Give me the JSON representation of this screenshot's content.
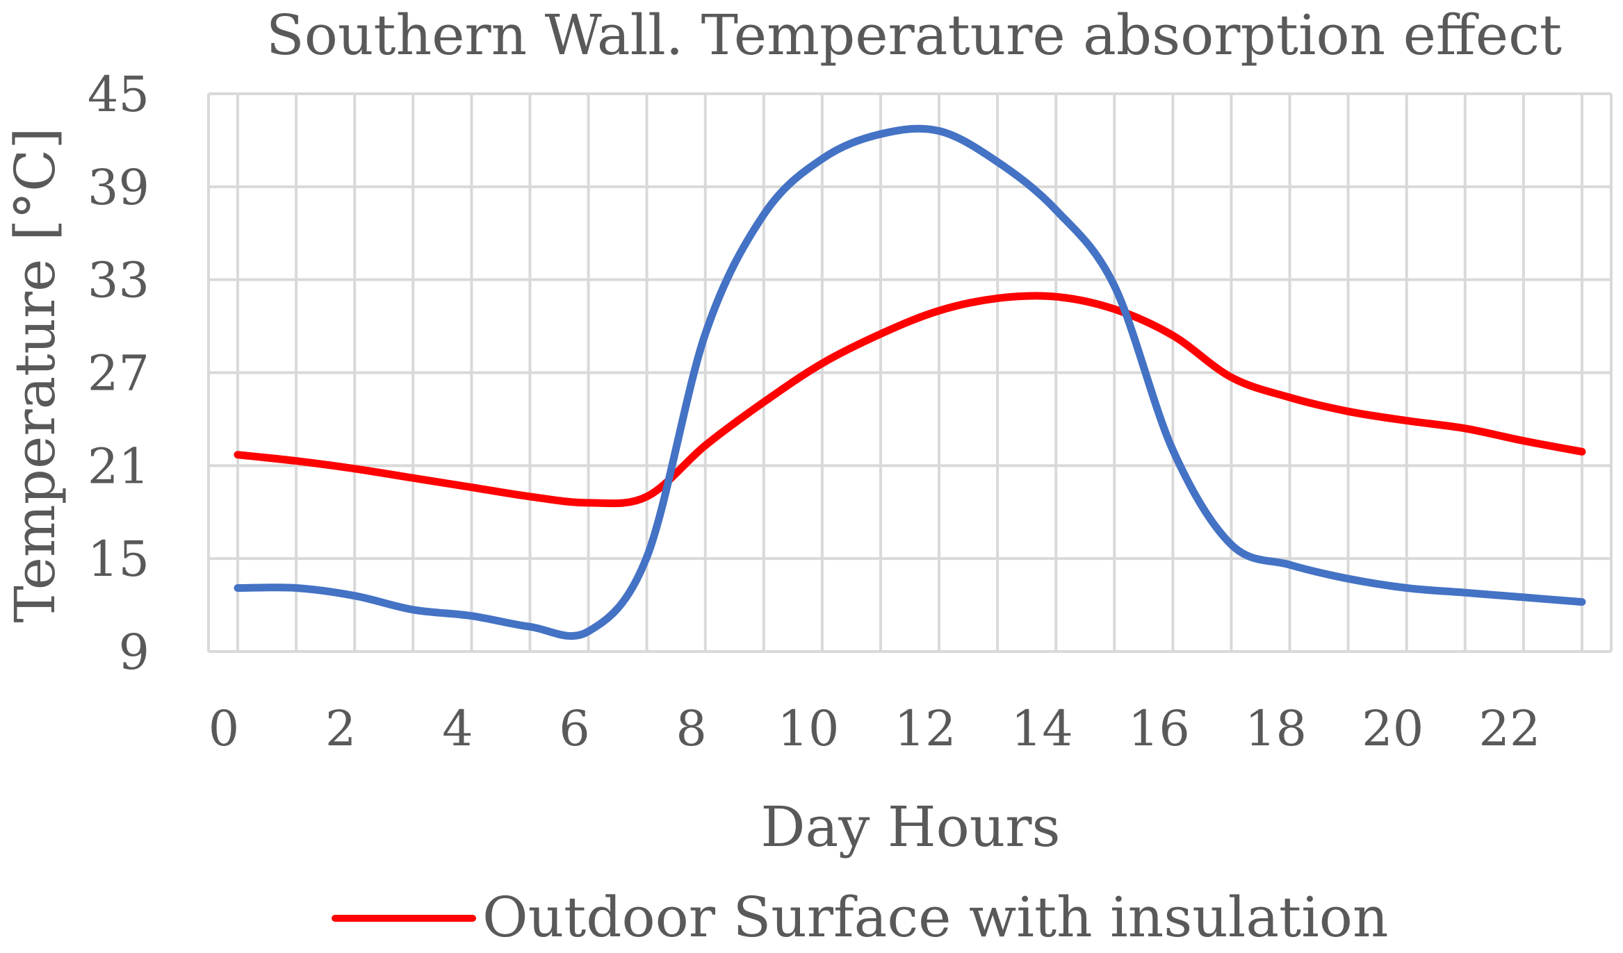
{
  "colors": {
    "background": "#ffffff",
    "grid": "#d9d9d9",
    "text": "#595959",
    "series_red": "#ff0000",
    "series_blue": "#4472c4"
  },
  "chart_data": {
    "type": "line",
    "title": "Southern Wall. Temperature absorption effect",
    "xlabel": "Day Hours",
    "ylabel": "Temperature [°C]",
    "xlim": [
      -0.5,
      23.5
    ],
    "ylim": [
      9,
      45
    ],
    "x_tick_values": [
      0,
      2,
      4,
      6,
      8,
      10,
      12,
      14,
      16,
      18,
      20,
      22
    ],
    "x_tick_labels": [
      "0",
      "2",
      "4",
      "6",
      "8",
      "10",
      "12",
      "14",
      "16",
      "18",
      "20",
      "22"
    ],
    "y_tick_values": [
      9,
      15,
      21,
      27,
      33,
      39,
      45
    ],
    "y_tick_labels": [
      "9",
      "15",
      "21",
      "27",
      "33",
      "39",
      "45"
    ],
    "grid": true,
    "x": [
      0,
      1,
      2,
      3,
      4,
      5,
      6,
      7,
      8,
      9,
      10,
      11,
      12,
      13,
      14,
      15,
      16,
      17,
      18,
      19,
      20,
      21,
      22,
      23
    ],
    "series": [
      {
        "name": "Outdoor Surface with insulation",
        "color": "#ff0000",
        "in_legend": true,
        "values": [
          21.7,
          21.3,
          20.8,
          20.2,
          19.6,
          19.0,
          18.6,
          19.0,
          22.3,
          25.1,
          27.6,
          29.5,
          31.0,
          31.8,
          31.9,
          31.1,
          29.4,
          26.7,
          25.4,
          24.5,
          23.9,
          23.4,
          22.6,
          21.9
        ]
      },
      {
        "name": "",
        "color": "#4472c4",
        "in_legend": false,
        "values": [
          13.1,
          13.1,
          12.6,
          11.7,
          11.3,
          10.6,
          10.3,
          15.1,
          29.5,
          37.2,
          40.8,
          42.4,
          42.6,
          40.6,
          37.5,
          32.6,
          22.0,
          15.9,
          14.6,
          13.7,
          13.1,
          12.8,
          12.5,
          12.2
        ]
      }
    ],
    "legend": {
      "position": "bottom-center",
      "entries": [
        "Outdoor Surface with insulation"
      ]
    }
  }
}
